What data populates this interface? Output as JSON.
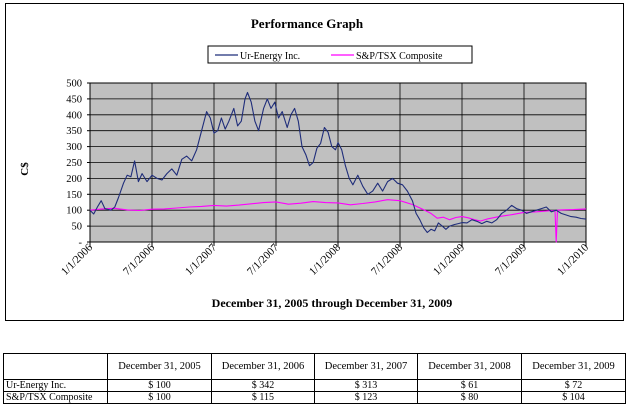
{
  "chart_data": {
    "type": "line",
    "title": "Performance Graph",
    "xlabel": "December 31, 2005 through December 31, 2009",
    "ylabel": "C$",
    "xlim": [
      2006.0,
      2010.0
    ],
    "ylim": [
      0,
      500
    ],
    "y_ticks": [
      500,
      450,
      400,
      350,
      300,
      250,
      200,
      150,
      100,
      50,
      0
    ],
    "y_tick_labels": [
      "500",
      "450",
      "400",
      "350",
      "300",
      "250",
      "200",
      "150",
      "100",
      "50",
      "-"
    ],
    "x_ticks": [
      2006.0,
      2006.5,
      2007.0,
      2007.5,
      2008.0,
      2008.5,
      2009.0,
      2009.5,
      2010.0
    ],
    "x_tick_labels": [
      "1/1/2006",
      "7/1/2006",
      "1/1/2007",
      "7/1/2007",
      "1/1/2008",
      "7/1/2008",
      "1/1/2009",
      "7/1/2009",
      "1/1/2010"
    ],
    "grid": true,
    "legend_position": "top",
    "series": [
      {
        "name": "Ur-Energy Inc.",
        "color": "#1f2d7a",
        "points": [
          [
            2006.0,
            100
          ],
          [
            2006.03,
            88
          ],
          [
            2006.06,
            110
          ],
          [
            2006.09,
            130
          ],
          [
            2006.12,
            105
          ],
          [
            2006.17,
            100
          ],
          [
            2006.2,
            110
          ],
          [
            2006.23,
            140
          ],
          [
            2006.27,
            185
          ],
          [
            2006.3,
            210
          ],
          [
            2006.33,
            205
          ],
          [
            2006.36,
            255
          ],
          [
            2006.39,
            190
          ],
          [
            2006.42,
            215
          ],
          [
            2006.46,
            190
          ],
          [
            2006.5,
            210
          ],
          [
            2006.54,
            200
          ],
          [
            2006.58,
            195
          ],
          [
            2006.62,
            215
          ],
          [
            2006.66,
            230
          ],
          [
            2006.7,
            210
          ],
          [
            2006.74,
            260
          ],
          [
            2006.78,
            270
          ],
          [
            2006.82,
            255
          ],
          [
            2006.86,
            290
          ],
          [
            2006.9,
            350
          ],
          [
            2006.94,
            410
          ],
          [
            2006.97,
            390
          ],
          [
            2007.0,
            342
          ],
          [
            2007.03,
            350
          ],
          [
            2007.06,
            390
          ],
          [
            2007.09,
            355
          ],
          [
            2007.12,
            380
          ],
          [
            2007.16,
            420
          ],
          [
            2007.19,
            365
          ],
          [
            2007.22,
            380
          ],
          [
            2007.25,
            450
          ],
          [
            2007.27,
            470
          ],
          [
            2007.3,
            440
          ],
          [
            2007.33,
            380
          ],
          [
            2007.36,
            350
          ],
          [
            2007.4,
            420
          ],
          [
            2007.43,
            450
          ],
          [
            2007.46,
            420
          ],
          [
            2007.49,
            440
          ],
          [
            2007.52,
            390
          ],
          [
            2007.55,
            410
          ],
          [
            2007.59,
            360
          ],
          [
            2007.62,
            400
          ],
          [
            2007.65,
            420
          ],
          [
            2007.68,
            380
          ],
          [
            2007.71,
            300
          ],
          [
            2007.74,
            275
          ],
          [
            2007.77,
            240
          ],
          [
            2007.8,
            250
          ],
          [
            2007.83,
            295
          ],
          [
            2007.86,
            310
          ],
          [
            2007.89,
            360
          ],
          [
            2007.92,
            345
          ],
          [
            2007.95,
            300
          ],
          [
            2007.98,
            290
          ],
          [
            2008.0,
            313
          ],
          [
            2008.03,
            290
          ],
          [
            2008.06,
            240
          ],
          [
            2008.09,
            200
          ],
          [
            2008.12,
            180
          ],
          [
            2008.16,
            210
          ],
          [
            2008.2,
            175
          ],
          [
            2008.24,
            150
          ],
          [
            2008.28,
            160
          ],
          [
            2008.32,
            185
          ],
          [
            2008.36,
            160
          ],
          [
            2008.4,
            190
          ],
          [
            2008.44,
            200
          ],
          [
            2008.48,
            185
          ],
          [
            2008.52,
            180
          ],
          [
            2008.56,
            160
          ],
          [
            2008.6,
            130
          ],
          [
            2008.63,
            90
          ],
          [
            2008.66,
            70
          ],
          [
            2008.69,
            45
          ],
          [
            2008.72,
            30
          ],
          [
            2008.75,
            40
          ],
          [
            2008.78,
            35
          ],
          [
            2008.81,
            60
          ],
          [
            2008.84,
            50
          ],
          [
            2008.87,
            40
          ],
          [
            2008.9,
            50
          ],
          [
            2008.94,
            55
          ],
          [
            2008.97,
            58
          ],
          [
            2009.0,
            61
          ],
          [
            2009.04,
            60
          ],
          [
            2009.08,
            70
          ],
          [
            2009.12,
            65
          ],
          [
            2009.16,
            58
          ],
          [
            2009.2,
            65
          ],
          [
            2009.24,
            60
          ],
          [
            2009.28,
            70
          ],
          [
            2009.32,
            90
          ],
          [
            2009.36,
            100
          ],
          [
            2009.4,
            115
          ],
          [
            2009.44,
            105
          ],
          [
            2009.48,
            100
          ],
          [
            2009.52,
            90
          ],
          [
            2009.56,
            95
          ],
          [
            2009.6,
            100
          ],
          [
            2009.64,
            105
          ],
          [
            2009.68,
            110
          ],
          [
            2009.72,
            95
          ],
          [
            2009.76,
            100
          ],
          [
            2009.8,
            90
          ],
          [
            2009.84,
            85
          ],
          [
            2009.88,
            80
          ],
          [
            2009.92,
            78
          ],
          [
            2009.96,
            74
          ],
          [
            2010.0,
            72
          ]
        ]
      },
      {
        "name": "S&P/TSX Composite",
        "color": "#ff00ff",
        "points": [
          [
            2006.0,
            100
          ],
          [
            2006.1,
            104
          ],
          [
            2006.2,
            106
          ],
          [
            2006.3,
            101
          ],
          [
            2006.4,
            99
          ],
          [
            2006.5,
            103
          ],
          [
            2006.6,
            104
          ],
          [
            2006.7,
            107
          ],
          [
            2006.8,
            110
          ],
          [
            2006.9,
            112
          ],
          [
            2007.0,
            115
          ],
          [
            2007.1,
            113
          ],
          [
            2007.2,
            116
          ],
          [
            2007.3,
            120
          ],
          [
            2007.4,
            124
          ],
          [
            2007.5,
            126
          ],
          [
            2007.6,
            119
          ],
          [
            2007.7,
            122
          ],
          [
            2007.8,
            127
          ],
          [
            2007.9,
            124
          ],
          [
            2008.0,
            123
          ],
          [
            2008.1,
            117
          ],
          [
            2008.2,
            121
          ],
          [
            2008.3,
            126
          ],
          [
            2008.4,
            133
          ],
          [
            2008.5,
            130
          ],
          [
            2008.6,
            118
          ],
          [
            2008.7,
            100
          ],
          [
            2008.75,
            90
          ],
          [
            2008.8,
            75
          ],
          [
            2008.85,
            78
          ],
          [
            2008.9,
            70
          ],
          [
            2008.95,
            77
          ],
          [
            2009.0,
            80
          ],
          [
            2009.05,
            76
          ],
          [
            2009.1,
            70
          ],
          [
            2009.15,
            66
          ],
          [
            2009.2,
            72
          ],
          [
            2009.3,
            80
          ],
          [
            2009.4,
            86
          ],
          [
            2009.5,
            93
          ],
          [
            2009.6,
            95
          ],
          [
            2009.7,
            98
          ],
          [
            2009.75,
            99
          ],
          [
            2009.76,
            0
          ],
          [
            2009.77,
            100
          ],
          [
            2009.8,
            101
          ],
          [
            2009.9,
            102
          ],
          [
            2010.0,
            104
          ]
        ]
      }
    ]
  },
  "table": {
    "headers": [
      "",
      "December 31, 2005",
      "December 31, 2006",
      "December 31, 2007",
      "December 31, 2008",
      "December 31, 2009"
    ],
    "rows": [
      {
        "label": "Ur-Energy Inc.",
        "values": [
          "$ 100",
          "$ 342",
          "$ 313",
          "$ 61",
          "$ 72"
        ]
      },
      {
        "label": "S&P/TSX Composite",
        "values": [
          "$ 100",
          "$ 115",
          "$ 123",
          "$ 80",
          "$ 104"
        ]
      }
    ]
  }
}
